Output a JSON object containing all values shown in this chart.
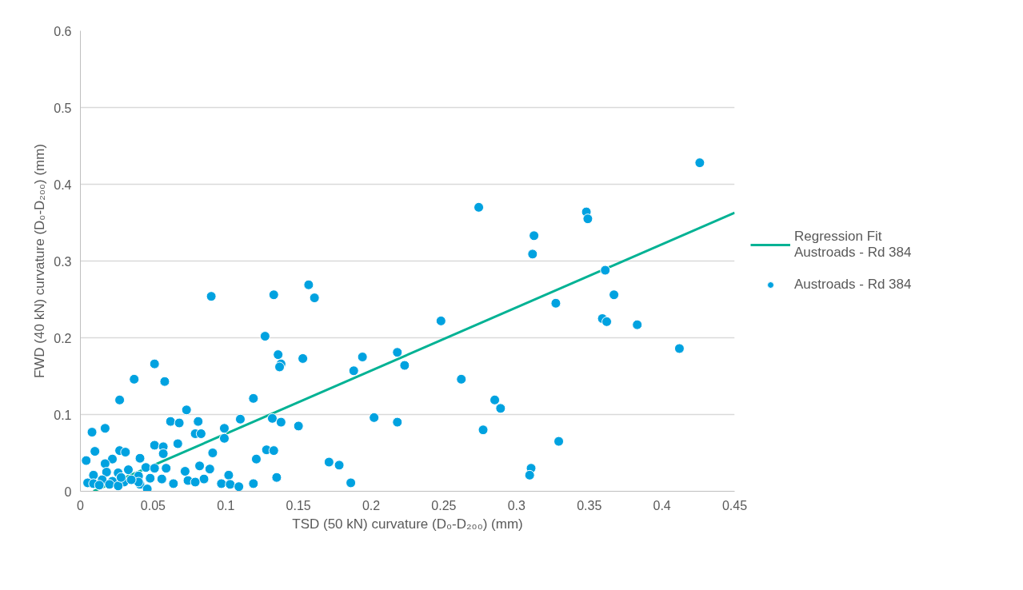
{
  "chart_data": {
    "type": "scatter",
    "xlabel": "TSD (50 kN) curvature (D₀-D₂₀₀) (mm)",
    "ylabel": "FWD (40 kN) curvature (D₀-D₂₀₀) (mm)",
    "xlim": [
      0,
      0.45
    ],
    "ylim": [
      0,
      0.6
    ],
    "xticks": [
      0,
      0.05,
      0.1,
      0.15,
      0.2,
      0.25,
      0.3,
      0.35,
      0.4,
      0.45
    ],
    "yticks": [
      0,
      0.1,
      0.2,
      0.3,
      0.4,
      0.5,
      0.6
    ],
    "grid": "y",
    "legend": "right",
    "marker": "circle",
    "series": [
      {
        "name": "Regression Fit\nAustroads - Rd 384",
        "type": "line",
        "marker": "none",
        "color": "#00b294",
        "x": [
          0.009,
          0.45
        ],
        "values": [
          0,
          0.363
        ]
      },
      {
        "name": "Austroads - Rd 384",
        "color": "#00a2e0",
        "x": [
          0.426,
          0.274,
          0.348,
          0.349,
          0.312,
          0.311,
          0.361,
          0.157,
          0.161,
          0.133,
          0.09,
          0.367,
          0.327,
          0.359,
          0.362,
          0.383,
          0.412,
          0.248,
          0.127,
          0.136,
          0.138,
          0.137,
          0.218,
          0.194,
          0.153,
          0.051,
          0.223,
          0.188,
          0.037,
          0.058,
          0.262,
          0.285,
          0.289,
          0.027,
          0.119,
          0.073,
          0.202,
          0.132,
          0.11,
          0.218,
          0.138,
          0.062,
          0.068,
          0.081,
          0.099,
          0.017,
          0.008,
          0.079,
          0.083,
          0.277,
          0.099,
          0.329,
          0.15,
          0.128,
          0.133,
          0.067,
          0.051,
          0.057,
          0.027,
          0.01,
          0.031,
          0.057,
          0.091,
          0.041,
          0.022,
          0.121,
          0.017,
          0.171,
          0.178,
          0.31,
          0.309,
          0.082,
          0.045,
          0.051,
          0.059,
          0.033,
          0.072,
          0.089,
          0.018,
          0.026,
          0.102,
          0.009,
          0.135,
          0.04,
          0.048,
          0.056,
          0.074,
          0.085,
          0.015,
          0.022,
          0.03,
          0.004,
          0.005,
          0.009,
          0.013,
          0.02,
          0.026,
          0.041,
          0.064,
          0.079,
          0.097,
          0.103,
          0.109,
          0.119,
          0.186,
          0.046,
          0.04,
          0.028,
          0.035
        ],
        "values": [
          0.428,
          0.37,
          0.364,
          0.355,
          0.333,
          0.309,
          0.288,
          0.269,
          0.252,
          0.256,
          0.254,
          0.256,
          0.245,
          0.225,
          0.221,
          0.217,
          0.186,
          0.222,
          0.202,
          0.178,
          0.166,
          0.162,
          0.181,
          0.175,
          0.173,
          0.166,
          0.164,
          0.157,
          0.146,
          0.143,
          0.146,
          0.119,
          0.108,
          0.119,
          0.121,
          0.106,
          0.096,
          0.095,
          0.094,
          0.09,
          0.09,
          0.091,
          0.089,
          0.091,
          0.082,
          0.082,
          0.077,
          0.075,
          0.075,
          0.08,
          0.069,
          0.065,
          0.085,
          0.054,
          0.053,
          0.062,
          0.06,
          0.058,
          0.053,
          0.052,
          0.051,
          0.049,
          0.05,
          0.043,
          0.042,
          0.042,
          0.036,
          0.038,
          0.034,
          0.03,
          0.021,
          0.033,
          0.031,
          0.03,
          0.03,
          0.028,
          0.026,
          0.029,
          0.025,
          0.024,
          0.021,
          0.021,
          0.018,
          0.02,
          0.017,
          0.016,
          0.014,
          0.016,
          0.015,
          0.013,
          0.012,
          0.04,
          0.011,
          0.01,
          0.008,
          0.009,
          0.007,
          0.009,
          0.01,
          0.012,
          0.01,
          0.009,
          0.006,
          0.01,
          0.011,
          0.003,
          0.012,
          0.018,
          0.015
        ]
      }
    ]
  }
}
